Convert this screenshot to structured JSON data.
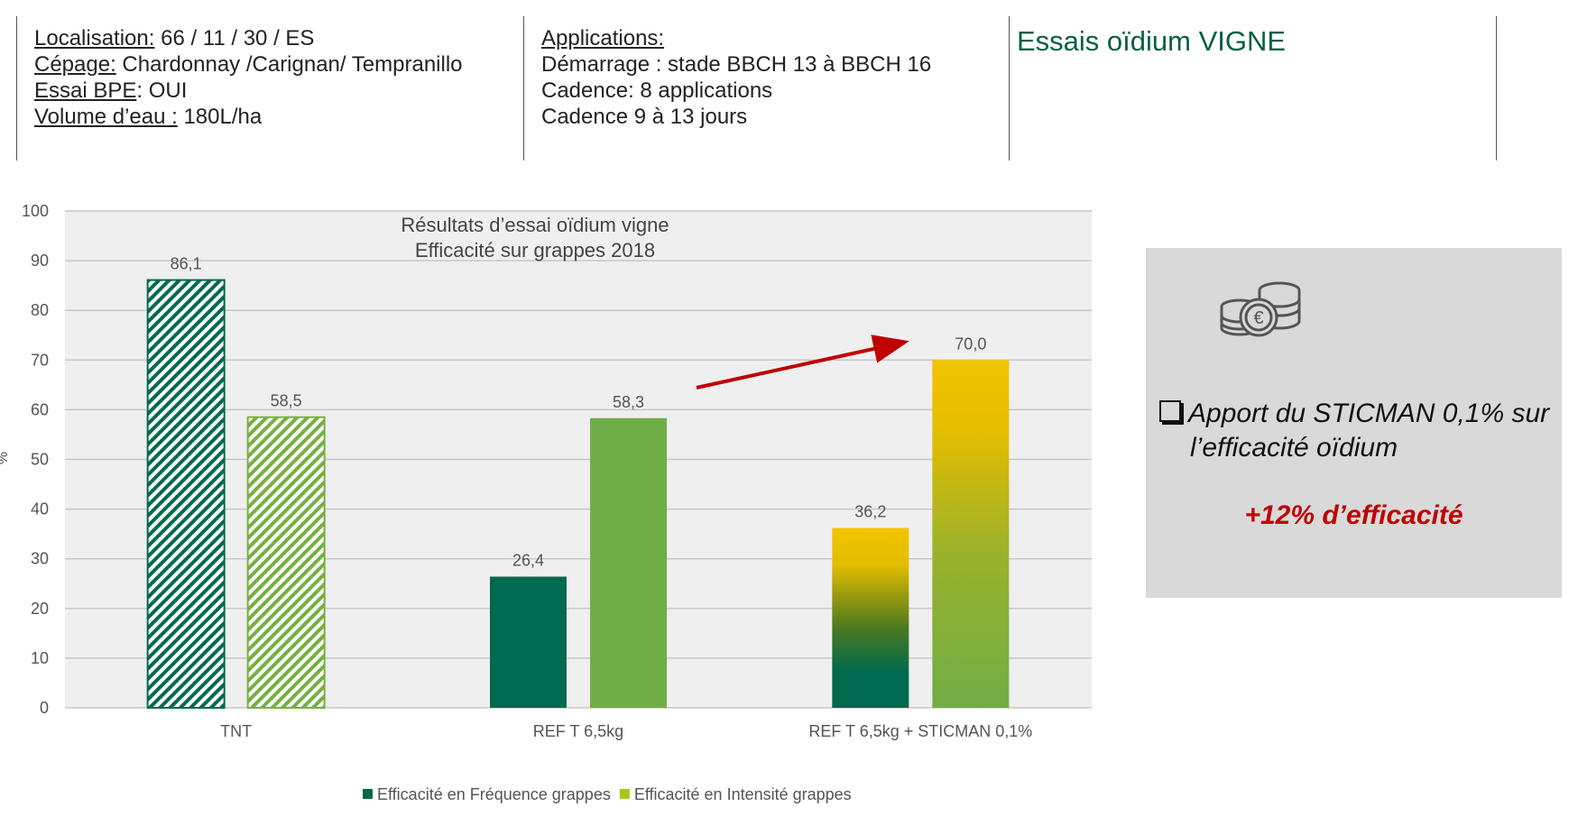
{
  "header": {
    "left": [
      {
        "label": "Localisation:",
        "value": " 66 / 11 / 30 / ES"
      },
      {
        "label": "Cépage:",
        "value": " Chardonnay /Carignan/ Tempranillo"
      },
      {
        "label": "Essai BPE",
        "value": ": OUI"
      },
      {
        "label": "Volume d’eau :",
        "value": " 180L/ha"
      }
    ],
    "middle": {
      "label": "Applications:",
      "lines": [
        "Démarrage : stade BBCH 13 à BBCH 16",
        "Cadence: 8 applications",
        "Cadence 9 à 13 jours"
      ]
    },
    "title": "Essais oïdium VIGNE"
  },
  "side_panel": {
    "icon": "euro-coins-icon",
    "line1": "Apport du STICMAN 0,1% sur",
    "line2": "l’efficacité oïdium",
    "gain": "+12% d’efficacité"
  },
  "chart_data": {
    "type": "bar",
    "title": "Résultats d’essai oïdium vigne",
    "subtitle": "Efficacité sur grappes 2018",
    "ylabel": "%",
    "ylim": [
      0,
      100
    ],
    "yticks": [
      0,
      10,
      20,
      30,
      40,
      50,
      60,
      70,
      80,
      90,
      100
    ],
    "grid": true,
    "legend_position": "bottom",
    "categories": [
      "TNT",
      "REF T 6,5kg",
      "REF T 6,5kg + STICMAN 0,1%"
    ],
    "series": [
      {
        "name": "Efficacité en Fréquence grappes",
        "color": "#006a4e",
        "values": [
          86.1,
          26.4,
          36.2
        ],
        "labels": [
          "86,1",
          "26,4",
          "36,2"
        ]
      },
      {
        "name": "Efficacité en Intensité grappes",
        "color": "#a4c81c",
        "values": [
          58.5,
          58.3,
          70.0
        ],
        "labels": [
          "58,5",
          "58,3",
          "70,0"
        ]
      }
    ],
    "annotations": [
      {
        "type": "arrow",
        "from_category": 1,
        "to_category": 2,
        "color": "#c00000"
      }
    ]
  }
}
